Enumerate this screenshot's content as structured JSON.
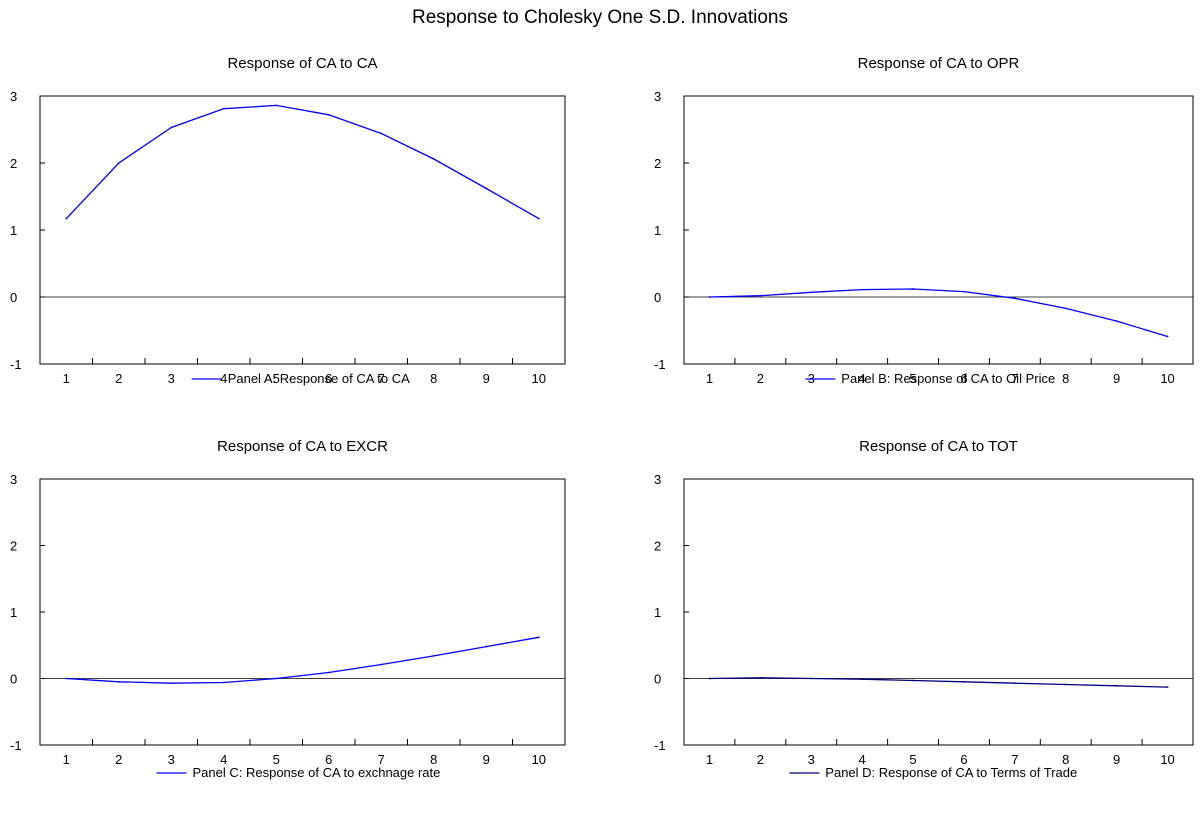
{
  "title": "Response to Cholesky One S.D. Innovations",
  "chart_data": [
    {
      "type": "line",
      "title": "Response of CA to CA",
      "x": [
        1,
        2,
        3,
        4,
        5,
        6,
        7,
        8,
        9,
        10
      ],
      "series": [
        {
          "name": "Panel A: Response of CA to CA",
          "color": "#0000ff",
          "values": [
            1.17,
            2.0,
            2.53,
            2.81,
            2.86,
            2.72,
            2.44,
            2.06,
            1.62,
            1.17
          ]
        }
      ],
      "ylim": [
        -1,
        3
      ],
      "y_ticks": [
        -1,
        0,
        1,
        2,
        3
      ],
      "x_ticks": [
        1,
        2,
        3,
        4,
        5,
        6,
        7,
        8,
        9,
        10
      ],
      "zero_line": true,
      "legend": "bottom"
    },
    {
      "type": "line",
      "title": "Response of CA to OPR",
      "x": [
        1,
        2,
        3,
        4,
        5,
        6,
        7,
        8,
        9,
        10
      ],
      "series": [
        {
          "name": "Panel B: Response of CA to Oil Price",
          "color": "#0000ff",
          "values": [
            0.0,
            0.02,
            0.07,
            0.11,
            0.12,
            0.08,
            -0.02,
            -0.17,
            -0.36,
            -0.59
          ]
        }
      ],
      "ylim": [
        -1,
        3
      ],
      "y_ticks": [
        -1,
        0,
        1,
        2,
        3
      ],
      "x_ticks": [
        1,
        2,
        3,
        4,
        5,
        6,
        7,
        8,
        9,
        10
      ],
      "zero_line": true,
      "legend": "bottom"
    },
    {
      "type": "line",
      "title": "Response of CA to EXCR",
      "x": [
        1,
        2,
        3,
        4,
        5,
        6,
        7,
        8,
        9,
        10
      ],
      "series": [
        {
          "name": "Panel C: Response of CA to exchnage rate",
          "color": "#0000ff",
          "values": [
            0.0,
            -0.05,
            -0.07,
            -0.06,
            0.0,
            0.09,
            0.21,
            0.34,
            0.48,
            0.62
          ]
        }
      ],
      "ylim": [
        -1,
        3
      ],
      "y_ticks": [
        -1,
        0,
        1,
        2,
        3
      ],
      "x_ticks": [
        1,
        2,
        3,
        4,
        5,
        6,
        7,
        8,
        9,
        10
      ],
      "zero_line": true,
      "legend": "bottom"
    },
    {
      "type": "line",
      "title": "Response of CA to TOT",
      "x": [
        1,
        2,
        3,
        4,
        5,
        6,
        7,
        8,
        9,
        10
      ],
      "series": [
        {
          "name": "Panel D: Response of CA to Terms of Trade",
          "color": "#00007f",
          "values": [
            0.0,
            0.01,
            0.0,
            -0.01,
            -0.03,
            -0.05,
            -0.07,
            -0.09,
            -0.11,
            -0.13
          ]
        }
      ],
      "ylim": [
        -1,
        3
      ],
      "y_ticks": [
        -1,
        0,
        1,
        2,
        3
      ],
      "x_ticks": [
        1,
        2,
        3,
        4,
        5,
        6,
        7,
        8,
        9,
        10
      ],
      "zero_line": true,
      "legend": "bottom"
    }
  ]
}
